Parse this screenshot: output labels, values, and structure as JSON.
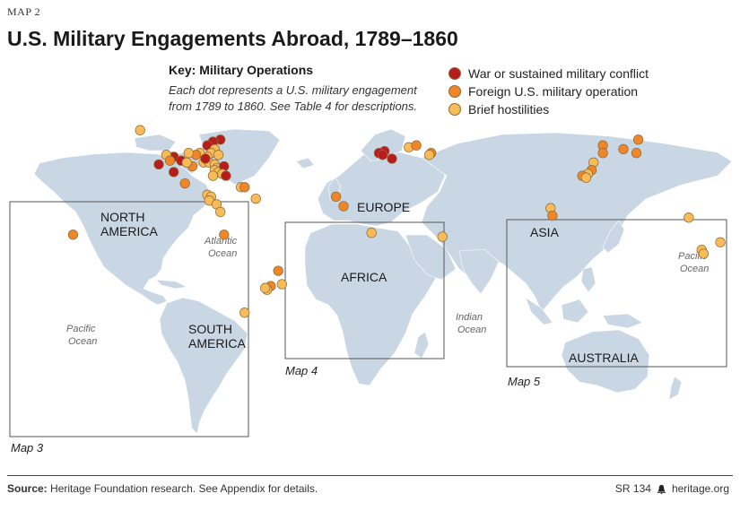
{
  "map_tag": "MAP 2",
  "title": "U.S. Military Engagements Abroad, 1789–1860",
  "key": {
    "heading": "Key: Military Operations",
    "description": "Each dot represents a U.S. military engagement from 1789 to 1860. See Table 4 for descriptions."
  },
  "legend": [
    {
      "label": "War or sustained military conflict",
      "color": "#b81c1c"
    },
    {
      "label": "Foreign U.S. military operation",
      "color": "#f0862a"
    },
    {
      "label": "Brief hostilities",
      "color": "#f8bb57"
    }
  ],
  "colors": {
    "land": "#c9d6e3",
    "box": "#555555",
    "dot_stroke": "#8a6a3a"
  },
  "region_labels": {
    "north_america": "NORTH AMERICA",
    "south_america": "SOUTH AMERICA",
    "europe": "EUROPE",
    "africa": "AFRICA",
    "asia": "ASIA",
    "australia": "AUSTRALIA"
  },
  "ocean_labels": {
    "atlantic": "Atlantic Ocean",
    "pacific_west": "Pacific Ocean",
    "indian": "Indian Ocean",
    "pacific_east": "Pacific Ocean"
  },
  "inset_labels": {
    "map3": "Map 3",
    "map4": "Map 4",
    "map5": "Map 5"
  },
  "engagements": [
    {
      "type": "brief",
      "lon": -122,
      "lat": 48
    },
    {
      "type": "war",
      "lon": -79,
      "lat": 43
    },
    {
      "type": "war",
      "lon": -83,
      "lat": 42
    },
    {
      "type": "war",
      "lon": -86,
      "lat": 40
    },
    {
      "type": "brief",
      "lon": -82,
      "lat": 38
    },
    {
      "type": "brief",
      "lon": -84,
      "lat": 36
    },
    {
      "type": "brief",
      "lon": -80,
      "lat": 35
    },
    {
      "type": "brief",
      "lon": -86,
      "lat": 34
    },
    {
      "type": "brief",
      "lon": -90,
      "lat": 36
    },
    {
      "type": "foreign",
      "lon": -92,
      "lat": 35
    },
    {
      "type": "brief",
      "lon": -96,
      "lat": 36
    },
    {
      "type": "war",
      "lon": -104,
      "lat": 34
    },
    {
      "type": "brief",
      "lon": -108,
      "lat": 35
    },
    {
      "type": "war",
      "lon": -100,
      "lat": 32
    },
    {
      "type": "foreign",
      "lon": -106,
      "lat": 32
    },
    {
      "type": "war",
      "lon": -112,
      "lat": 30
    },
    {
      "type": "brief",
      "lon": -88,
      "lat": 31
    },
    {
      "type": "brief",
      "lon": -85,
      "lat": 31
    },
    {
      "type": "brief",
      "lon": -82,
      "lat": 30
    },
    {
      "type": "brief",
      "lon": -81,
      "lat": 28
    },
    {
      "type": "brief",
      "lon": -82,
      "lat": 27
    },
    {
      "type": "brief",
      "lon": -80,
      "lat": 26
    },
    {
      "type": "war",
      "lon": -77,
      "lat": 29
    },
    {
      "type": "war",
      "lon": -87,
      "lat": 33
    },
    {
      "type": "foreign",
      "lon": -94,
      "lat": 29
    },
    {
      "type": "brief",
      "lon": -97,
      "lat": 31
    },
    {
      "type": "war",
      "lon": -104,
      "lat": 26
    },
    {
      "type": "foreign",
      "lon": -98,
      "lat": 20
    },
    {
      "type": "brief",
      "lon": -78,
      "lat": 25
    },
    {
      "type": "war",
      "lon": -76,
      "lat": 24
    },
    {
      "type": "brief",
      "lon": -83,
      "lat": 24
    },
    {
      "type": "brief",
      "lon": -68,
      "lat": 18
    },
    {
      "type": "foreign",
      "lon": -66,
      "lat": 18
    },
    {
      "type": "brief",
      "lon": -86,
      "lat": 14
    },
    {
      "type": "brief",
      "lon": -84,
      "lat": 13
    },
    {
      "type": "brief",
      "lon": -85,
      "lat": 11
    },
    {
      "type": "brief",
      "lon": -81,
      "lat": 9
    },
    {
      "type": "brief",
      "lon": -79,
      "lat": 5
    },
    {
      "type": "brief",
      "lon": -60,
      "lat": 12
    },
    {
      "type": "foreign",
      "lon": -158,
      "lat": -7
    },
    {
      "type": "foreign",
      "lon": -77,
      "lat": -7
    },
    {
      "type": "foreign",
      "lon": -48,
      "lat": -26
    },
    {
      "type": "brief",
      "lon": -46,
      "lat": -33
    },
    {
      "type": "foreign",
      "lon": -52,
      "lat": -34
    },
    {
      "type": "brief",
      "lon": -54,
      "lat": -36
    },
    {
      "type": "brief",
      "lon": -55,
      "lat": -35
    },
    {
      "type": "brief",
      "lon": -66,
      "lat": -48
    },
    {
      "type": "war",
      "lon": 9,
      "lat": 37
    },
    {
      "type": "war",
      "lon": 13,
      "lat": 33
    },
    {
      "type": "war",
      "lon": 6,
      "lat": 36
    },
    {
      "type": "war",
      "lon": 8,
      "lat": 35
    },
    {
      "type": "brief",
      "lon": 22,
      "lat": 39
    },
    {
      "type": "foreign",
      "lon": 26,
      "lat": 40
    },
    {
      "type": "foreign",
      "lon": 34,
      "lat": 36
    },
    {
      "type": "brief",
      "lon": 33,
      "lat": 35
    },
    {
      "type": "foreign",
      "lon": -17,
      "lat": 13
    },
    {
      "type": "foreign",
      "lon": -13,
      "lat": 8
    },
    {
      "type": "brief",
      "lon": 2,
      "lat": -6
    },
    {
      "type": "brief",
      "lon": 40,
      "lat": -8
    },
    {
      "type": "foreign",
      "lon": 126,
      "lat": 40
    },
    {
      "type": "foreign",
      "lon": 126,
      "lat": 36
    },
    {
      "type": "foreign",
      "lon": 137,
      "lat": 38
    },
    {
      "type": "foreign",
      "lon": 145,
      "lat": 43
    },
    {
      "type": "foreign",
      "lon": 144,
      "lat": 36
    },
    {
      "type": "brief",
      "lon": 121,
      "lat": 31
    },
    {
      "type": "foreign",
      "lon": 120,
      "lat": 27
    },
    {
      "type": "brief",
      "lon": 118,
      "lat": 25
    },
    {
      "type": "foreign",
      "lon": 115,
      "lat": 24
    },
    {
      "type": "brief",
      "lon": 117,
      "lat": 23
    },
    {
      "type": "brief",
      "lon": 98,
      "lat": 7
    },
    {
      "type": "foreign",
      "lon": 99,
      "lat": 3
    },
    {
      "type": "brief",
      "lon": 172,
      "lat": 2
    },
    {
      "type": "brief",
      "lon": 179,
      "lat": -15
    },
    {
      "type": "brief",
      "lon": 180,
      "lat": -17
    },
    {
      "type": "brief",
      "lon": 189,
      "lat": -11
    }
  ]
}
